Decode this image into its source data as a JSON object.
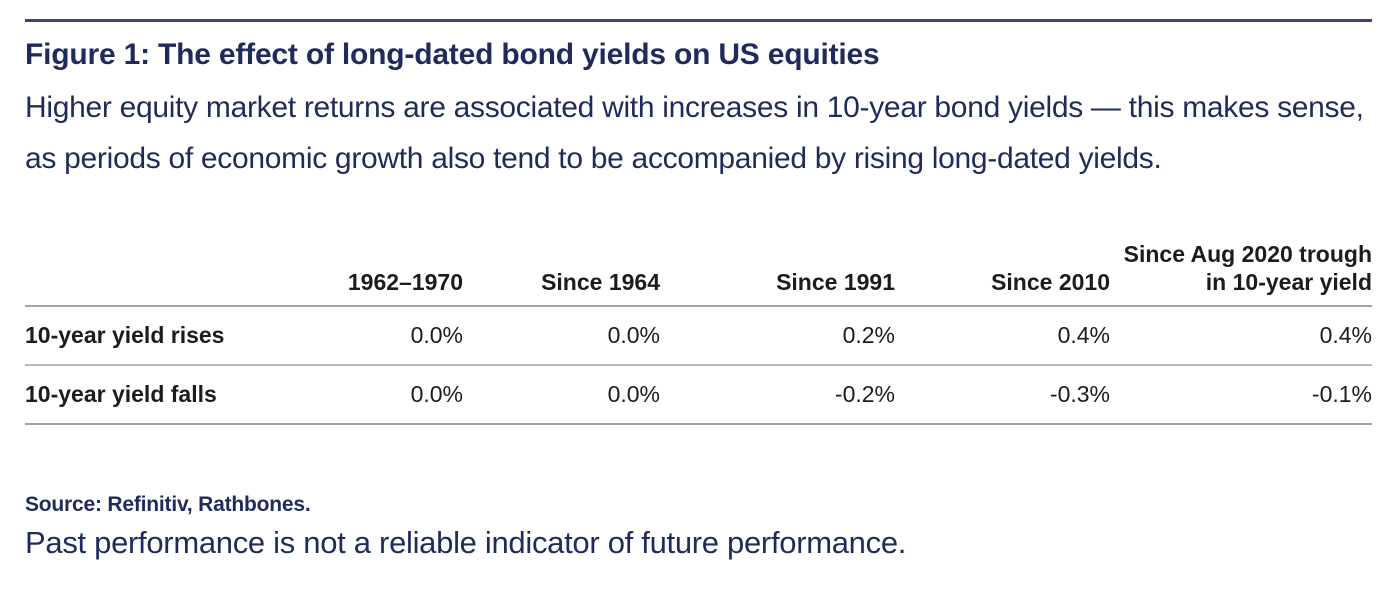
{
  "figure": {
    "title": "Figure 1: The effect of long-dated bond yields on US equities",
    "subtitle": "Higher equity market returns are associated with increases in 10-year bond yields — this makes sense, as periods of economic growth also tend to be accompanied by rising long-dated yields."
  },
  "chart_data": {
    "type": "table",
    "columns": [
      "",
      "1962–1970",
      "Since 1964",
      "Since 1991",
      "Since 2010",
      "Since Aug 2020 trough\nin 10-year yield"
    ],
    "rows": [
      {
        "label": "10-year yield rises",
        "values": [
          "0.0%",
          "0.0%",
          "0.2%",
          "0.4%",
          "0.4%"
        ]
      },
      {
        "label": "10-year yield falls",
        "values": [
          "0.0%",
          "0.0%",
          "-0.2%",
          "-0.3%",
          "-0.1%"
        ]
      }
    ]
  },
  "footer": {
    "source": "Source: Refinitiv, Rathbones.",
    "disclaimer": "Past performance is not a reliable indicator of future performance."
  },
  "colors": {
    "navy_text": "#1f2b5b",
    "top_rule": "#3a4677",
    "table_text": "#1c1c1c",
    "table_rule": "#a0a5a7"
  }
}
